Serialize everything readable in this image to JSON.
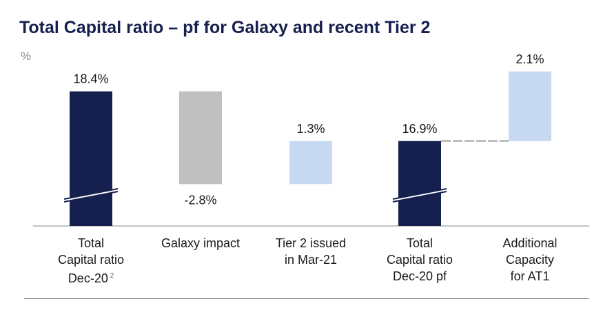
{
  "title": "Total Capital ratio – pf for Galaxy and recent Tier 2",
  "unit": "%",
  "colors": {
    "navy": "#16204f",
    "grey": "#c0c0c0",
    "light_blue": "#c6d9f0",
    "text": "#1a1a1a"
  },
  "chart_data": {
    "type": "bar",
    "subtype": "waterfall",
    "title": "Total Capital ratio – pf for Galaxy and recent Tier 2",
    "unit": "%",
    "axis_break": true,
    "categories": [
      {
        "lines": [
          "Total",
          "Capital ratio",
          "Dec-20"
        ],
        "footnote": "2"
      },
      {
        "lines": [
          "Galaxy impact"
        ]
      },
      {
        "lines": [
          "Tier 2 issued",
          "in Mar-21"
        ]
      },
      {
        "lines": [
          "Total",
          "Capital ratio",
          "Dec-20 pf"
        ]
      },
      {
        "lines": [
          "Additional",
          "Capacity",
          "for AT1"
        ]
      }
    ],
    "bars": [
      {
        "kind": "total",
        "value": 18.4,
        "label": "18.4%",
        "color": "navy"
      },
      {
        "kind": "delta",
        "value": -2.8,
        "label": "-2.8%",
        "color": "grey"
      },
      {
        "kind": "delta",
        "value": 1.3,
        "label": "1.3%",
        "color": "light_blue"
      },
      {
        "kind": "total",
        "value": 16.9,
        "label": "16.9%",
        "color": "navy"
      },
      {
        "kind": "delta",
        "value": 2.1,
        "label": "2.1%",
        "color": "light_blue"
      }
    ]
  }
}
